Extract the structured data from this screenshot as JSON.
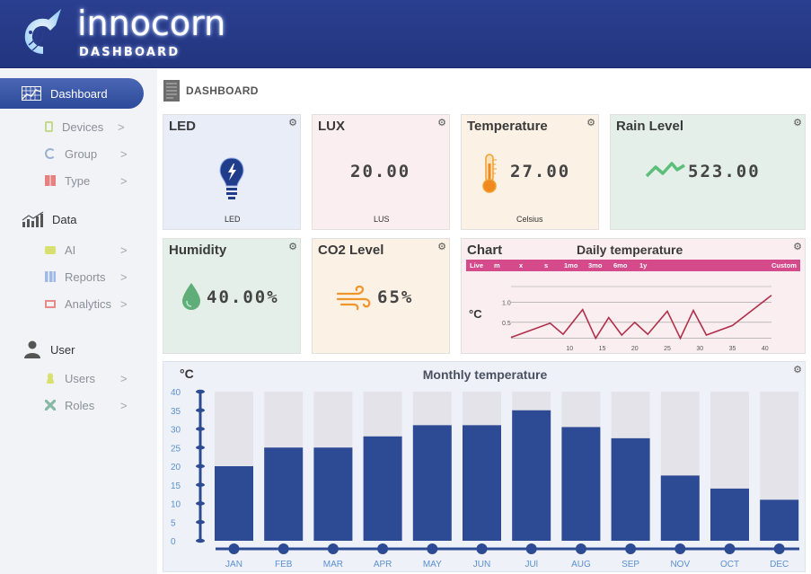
{
  "brand": {
    "name": "innocorn",
    "subtitle": "DASHBOARD"
  },
  "sidebar": {
    "active": {
      "label": "Dashboard",
      "icon": "grid-chart-icon"
    },
    "sections": [
      {
        "label": "Data",
        "icon": "bar-chart-icon"
      },
      {
        "label": "User",
        "icon": "person-icon"
      }
    ],
    "items": [
      {
        "label": "Devices",
        "icon": "device-icon",
        "color": "#c5d98a"
      },
      {
        "label": "Group",
        "icon": "refresh-icon",
        "color": "#9ab0d0"
      },
      {
        "label": "Type",
        "icon": "tiles-icon",
        "color": "#e88080"
      },
      {
        "label": "AI",
        "icon": "ai-icon",
        "color": "#d8e070"
      },
      {
        "label": "Reports",
        "icon": "report-icon",
        "color": "#a0b8e8"
      },
      {
        "label": "Analytics",
        "icon": "monitor-icon",
        "color": "#e88a8a"
      },
      {
        "label": "Users",
        "icon": "users-icon",
        "color": "#d8e070"
      },
      {
        "label": "Roles",
        "icon": "tools-icon",
        "color": "#8ab8a8"
      }
    ],
    "chevron": ">"
  },
  "page": {
    "title": "DASHBOARD"
  },
  "cards": {
    "led": {
      "title": "LED",
      "caption": "LED",
      "bg": "#e8edf8"
    },
    "lux": {
      "title": "LUX",
      "value": "20.00",
      "caption": "LUS",
      "bg": "#fbeef0"
    },
    "temperature": {
      "title": "Temperature",
      "value": "27.00",
      "caption": "Celsius",
      "bg": "#fbf1e4"
    },
    "rain": {
      "title": "Rain Level",
      "value": "523.00",
      "bg": "#e4efea"
    },
    "humidity": {
      "title": "Humidity",
      "value": "40.00%",
      "bg": "#e4efea"
    },
    "co2": {
      "title": "CO2 Level",
      "value": "65%",
      "bg": "#fbf1e4"
    }
  },
  "daily": {
    "card_title": "Chart",
    "title": "Daily temperature",
    "unit": "°C",
    "ranges": [
      "Live",
      "m",
      "x",
      "s",
      "1mo",
      "3mo",
      "6mo",
      "1y",
      "Custom"
    ],
    "y_ticks": [
      "1.0",
      "0.5"
    ],
    "x_ticks": [
      "10",
      "15",
      "20",
      "25",
      "30",
      "35",
      "40"
    ],
    "x_tick_values": [
      10,
      15,
      20,
      25,
      30,
      35,
      40
    ],
    "y_tick_values": [
      1.0,
      0.5
    ],
    "xlim": [
      1,
      41
    ],
    "ylim": [
      0,
      1.4
    ],
    "points": [
      [
        1,
        0.12
      ],
      [
        4,
        0.3
      ],
      [
        7,
        0.48
      ],
      [
        9,
        0.2
      ],
      [
        12,
        0.82
      ],
      [
        14,
        0.1
      ],
      [
        16,
        0.62
      ],
      [
        18,
        0.18
      ],
      [
        20,
        0.5
      ],
      [
        22,
        0.2
      ],
      [
        25,
        0.78
      ],
      [
        27,
        0.1
      ],
      [
        29,
        0.8
      ],
      [
        31,
        0.18
      ],
      [
        35,
        0.42
      ],
      [
        41,
        1.18
      ]
    ],
    "color": "#b0304a"
  },
  "chart_data": {
    "type": "bar",
    "title": "Monthly temperature",
    "ylabel": "°C",
    "categories": [
      "JAN",
      "FEB",
      "MAR",
      "APR",
      "MAY",
      "JUN",
      "JUl",
      "AUG",
      "SEP",
      "NOV",
      "OCT",
      "DEC"
    ],
    "values": [
      20,
      25,
      25,
      28,
      31,
      31,
      35,
      30.5,
      27.5,
      17.5,
      14,
      11
    ],
    "max_values": [
      40,
      40,
      40,
      40,
      40,
      40,
      40,
      40,
      40,
      40,
      40,
      40
    ],
    "y_ticks": [
      "40",
      "35",
      "30",
      "25",
      "20",
      "15",
      "10",
      "5",
      "0"
    ],
    "ylim": [
      0,
      40
    ],
    "bar_color": "#2d4a94",
    "track_color": "#e4e3ea"
  }
}
